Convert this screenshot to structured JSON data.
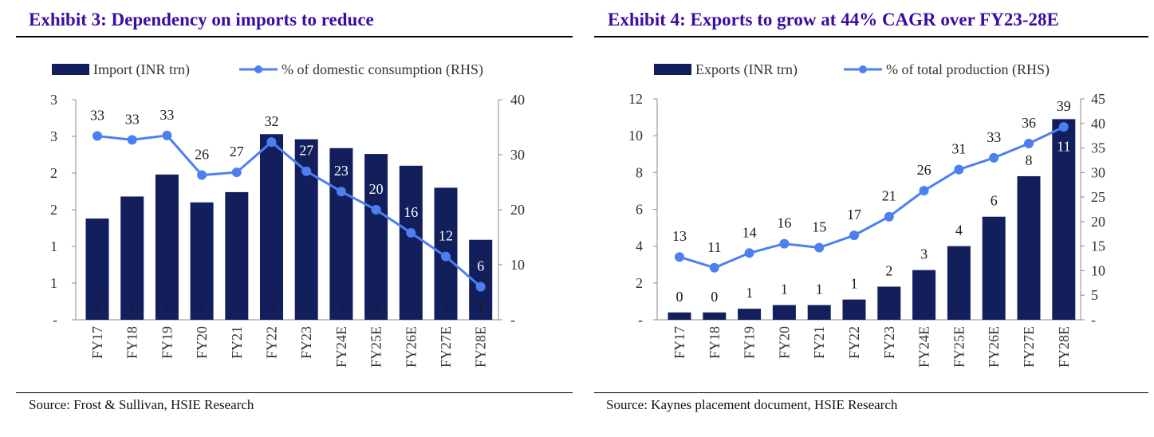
{
  "colors": {
    "title": "#3a0ca3",
    "bar": "#131f5c",
    "line": "#4c80f0",
    "axis": "#888888"
  },
  "chart_data": [
    {
      "type": "bar+line",
      "title": "Exhibit 3: Dependency on imports to reduce",
      "source": "Source: Frost & Sullivan, HSIE Research",
      "categories": [
        "FY17",
        "FY18",
        "FY19",
        "FY20",
        "FY21",
        "FY22",
        "FY23",
        "FY24E",
        "FY25E",
        "FY26E",
        "FY27E",
        "FY28E"
      ],
      "series": [
        {
          "name": "Import (INR trn)",
          "axis": "left",
          "kind": "bar",
          "values": [
            1.38,
            1.68,
            1.98,
            1.6,
            1.74,
            2.53,
            2.46,
            2.34,
            2.26,
            2.1,
            1.8,
            1.09
          ],
          "labels": [
            "1",
            "2",
            "2",
            "2",
            "2",
            "3",
            "2",
            "2",
            "2",
            "2",
            "2",
            "1"
          ]
        },
        {
          "name": "% of domestic consumption (RHS)",
          "axis": "right",
          "kind": "line",
          "values": [
            33.4,
            32.7,
            33.5,
            26.3,
            26.8,
            32.3,
            27,
            23.3,
            20,
            15.8,
            11.5,
            6
          ],
          "labels": [
            "33",
            "33",
            "33",
            "26",
            "27",
            "32",
            "27",
            "23",
            "20",
            "16",
            "12",
            "6"
          ]
        }
      ],
      "ylim_left": [
        0,
        3
      ],
      "yticks_left": [
        "-",
        "1",
        "1",
        "2",
        "2",
        "3",
        "3"
      ],
      "ylim_right": [
        0,
        40
      ],
      "yticks_right": [
        "-",
        "10",
        "20",
        "30",
        "40"
      ],
      "legend": "top",
      "grid": false
    },
    {
      "type": "bar+line",
      "title": "Exhibit 4: Exports to grow at 44% CAGR over FY23-28E",
      "source": "Source: Kaynes placement document, HSIE Research",
      "categories": [
        "FY17",
        "FY18",
        "FY19",
        "FY20",
        "FY21",
        "FY22",
        "FY23",
        "FY24E",
        "FY25E",
        "FY26E",
        "FY27E",
        "FY28E"
      ],
      "series": [
        {
          "name": "Exports (INR trn)",
          "axis": "left",
          "kind": "bar",
          "values": [
            0.4,
            0.4,
            0.6,
            0.8,
            0.8,
            1.1,
            1.8,
            2.7,
            4.0,
            5.6,
            7.8,
            10.9
          ],
          "labels": [
            "0",
            "0",
            "1",
            "1",
            "1",
            "1",
            "2",
            "3",
            "4",
            "6",
            "8",
            "11"
          ]
        },
        {
          "name": "% of total production (RHS)",
          "axis": "right",
          "kind": "line",
          "values": [
            12.8,
            10.6,
            13.6,
            15.5,
            14.7,
            17.2,
            21,
            26.3,
            30.6,
            33,
            35.9,
            39.3
          ],
          "labels": [
            "13",
            "11",
            "14",
            "16",
            "15",
            "17",
            "21",
            "26",
            "31",
            "33",
            "36",
            "39"
          ]
        }
      ],
      "ylim_left": [
        0,
        12
      ],
      "yticks_left": [
        "-",
        "2",
        "4",
        "6",
        "8",
        "10",
        "12"
      ],
      "ylim_right": [
        0,
        45
      ],
      "yticks_right": [
        "-",
        "5",
        "10",
        "15",
        "20",
        "25",
        "30",
        "35",
        "40",
        "45"
      ],
      "legend": "top",
      "grid": false
    }
  ]
}
